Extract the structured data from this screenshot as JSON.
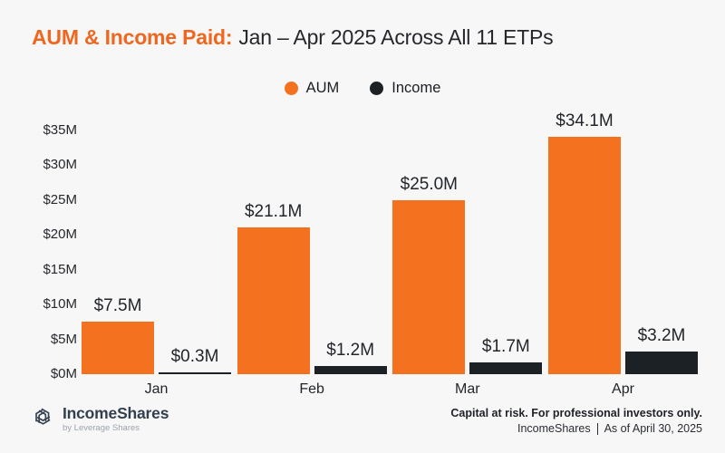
{
  "title": {
    "highlight": "AUM & Income Paid:",
    "rest": "Jan – Apr 2025 Across All 11 ETPs"
  },
  "legend": [
    {
      "label": "AUM",
      "color": "#F4711F"
    },
    {
      "label": "Income",
      "color": "#1C2126"
    }
  ],
  "chart_data": {
    "type": "bar",
    "title": "AUM & Income Paid: Jan – Apr 2025 Across All 11 ETPs",
    "categories": [
      "Jan",
      "Feb",
      "Mar",
      "Apr"
    ],
    "series": [
      {
        "name": "AUM",
        "color": "#F4711F",
        "values": [
          7.5,
          21.1,
          25.0,
          34.1
        ],
        "labels": [
          "$7.5M",
          "$21.1M",
          "$25.0M",
          "$34.1M"
        ]
      },
      {
        "name": "Income",
        "color": "#1C2126",
        "values": [
          0.3,
          1.2,
          1.7,
          3.2
        ],
        "labels": [
          "$0.3M",
          "$1.2M",
          "$1.7M",
          "$3.2M"
        ]
      }
    ],
    "xlabel": "",
    "ylabel": "",
    "ylim": [
      0,
      35
    ],
    "yticks": [
      "$0M",
      "$5M",
      "$10M",
      "$15M",
      "$20M",
      "$25M",
      "$30M",
      "$35M"
    ],
    "grid": false,
    "legend_position": "top"
  },
  "footer": {
    "brand": {
      "name": "IncomeShares",
      "tagline": "by Leverage Shares"
    },
    "disclaimer": "Capital at risk. For professional investors only.",
    "source": "IncomeShares",
    "as_of": "As of April 30, 2025"
  },
  "colors": {
    "background": "#F7F7F8",
    "accent_orange": "#F4711F",
    "title_orange": "#F0661F",
    "dark_bar": "#1C2126",
    "text_dark": "#26272B",
    "logo_slate": "#333F4E"
  }
}
